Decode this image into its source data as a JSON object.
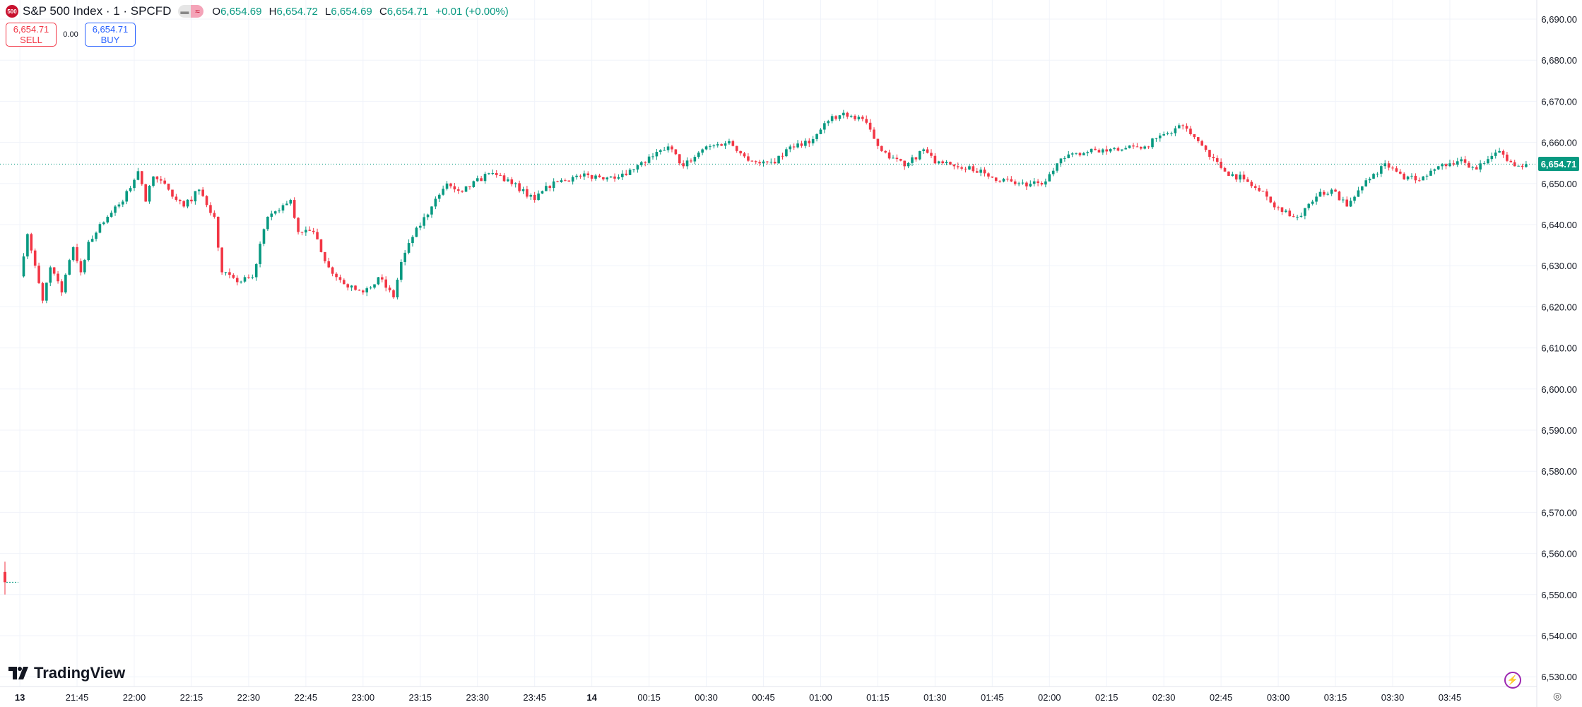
{
  "header": {
    "symbol_badge": "500",
    "title": "S&P 500 Index · 1 · SPCFD",
    "ohlc": {
      "o_label": "O",
      "o": "6,654.69",
      "h_label": "H",
      "h": "6,654.72",
      "l_label": "L",
      "l": "6,654.69",
      "c_label": "C",
      "c": "6,654.71",
      "change": "+0.01 (+0.00%)"
    }
  },
  "trade": {
    "sell_price": "6,654.71",
    "sell_label": "SELL",
    "spread": "0.00",
    "buy_price": "6,654.71",
    "buy_label": "BUY"
  },
  "current_price_label": "6,654.71",
  "logo_text": "TradingView",
  "colors": {
    "up": "#089981",
    "down": "#f23645",
    "grid": "#f0f3fa",
    "accent": "#089981"
  },
  "chart_data": {
    "type": "candlestick",
    "interval": "1 minute",
    "x_unit": "minutes since 21:30",
    "y_ticks": [
      "6,690.00",
      "6,680.00",
      "6,670.00",
      "6,660.00",
      "6,650.00",
      "6,640.00",
      "6,630.00",
      "6,620.00",
      "6,610.00",
      "6,600.00",
      "6,590.00",
      "6,580.00",
      "6,570.00",
      "6,560.00",
      "6,550.00",
      "6,540.00",
      "6,530.00"
    ],
    "y_tick_values": [
      6690,
      6680,
      6670,
      6660,
      6650,
      6640,
      6630,
      6620,
      6610,
      6600,
      6590,
      6580,
      6570,
      6560,
      6550,
      6540,
      6530
    ],
    "x_ticks": [
      {
        "label": "13",
        "m": 0
      },
      {
        "label": "21:45",
        "m": 15
      },
      {
        "label": "22:00",
        "m": 30
      },
      {
        "label": "22:15",
        "m": 45
      },
      {
        "label": "22:30",
        "m": 60
      },
      {
        "label": "22:45",
        "m": 75
      },
      {
        "label": "23:00",
        "m": 90
      },
      {
        "label": "23:15",
        "m": 105
      },
      {
        "label": "23:30",
        "m": 120
      },
      {
        "label": "23:45",
        "m": 135
      },
      {
        "label": "14",
        "m": 150
      },
      {
        "label": "00:15",
        "m": 165
      },
      {
        "label": "00:30",
        "m": 180
      },
      {
        "label": "00:45",
        "m": 195
      },
      {
        "label": "01:00",
        "m": 210
      },
      {
        "label": "01:15",
        "m": 225
      },
      {
        "label": "01:30",
        "m": 240
      },
      {
        "label": "01:45",
        "m": 255
      },
      {
        "label": "02:00",
        "m": 270
      },
      {
        "label": "02:15",
        "m": 285
      },
      {
        "label": "02:30",
        "m": 300
      },
      {
        "label": "02:45",
        "m": 315
      },
      {
        "label": "03:00",
        "m": 330
      },
      {
        "label": "03:15",
        "m": 345
      },
      {
        "label": "03:30",
        "m": 360
      },
      {
        "label": "03:45",
        "m": 375
      }
    ],
    "current_price": 6654.71,
    "previous_session_close": 6553,
    "close_waypoints": [
      [
        0,
        6628.4
      ],
      [
        2,
        6637.7
      ],
      [
        6,
        6621.5
      ],
      [
        8,
        6629.6
      ],
      [
        11,
        6623.5
      ],
      [
        14,
        6634.5
      ],
      [
        16,
        6628.4
      ],
      [
        18,
        6635.8
      ],
      [
        23,
        6641.9
      ],
      [
        27,
        6645.6
      ],
      [
        31,
        6653
      ],
      [
        33,
        6645.6
      ],
      [
        35,
        6651.7
      ],
      [
        39,
        6648.5
      ],
      [
        43,
        6644.4
      ],
      [
        47,
        6648.5
      ],
      [
        51,
        6641.9
      ],
      [
        53,
        6628.4
      ],
      [
        57,
        6626
      ],
      [
        61,
        6627.2
      ],
      [
        65,
        6641.9
      ],
      [
        71,
        6646
      ],
      [
        73,
        6638.2
      ],
      [
        77,
        6638.2
      ],
      [
        81,
        6629.6
      ],
      [
        86,
        6624.7
      ],
      [
        90,
        6623.5
      ],
      [
        94,
        6627.2
      ],
      [
        98,
        6622.3
      ],
      [
        100,
        6630.9
      ],
      [
        103,
        6637
      ],
      [
        108,
        6644.4
      ],
      [
        112,
        6650
      ],
      [
        116,
        6648
      ],
      [
        123,
        6652.5
      ],
      [
        128,
        6651
      ],
      [
        135,
        6646
      ],
      [
        140,
        6650.5
      ],
      [
        147,
        6651.7
      ],
      [
        155,
        6651.7
      ],
      [
        161,
        6653.4
      ],
      [
        166,
        6656.6
      ],
      [
        170,
        6659
      ],
      [
        174,
        6654.2
      ],
      [
        179,
        6658.3
      ],
      [
        186,
        6660.3
      ],
      [
        190,
        6656.6
      ],
      [
        194,
        6654.9
      ],
      [
        198,
        6654.9
      ],
      [
        202,
        6659
      ],
      [
        208,
        6660.8
      ],
      [
        212,
        6665.2
      ],
      [
        216,
        6667.2
      ],
      [
        221,
        6665.7
      ],
      [
        226,
        6657.9
      ],
      [
        232,
        6654.2
      ],
      [
        237,
        6658.3
      ],
      [
        240,
        6654.9
      ],
      [
        245,
        6654.2
      ],
      [
        249,
        6654.2
      ],
      [
        254,
        6651.7
      ],
      [
        260,
        6650.5
      ],
      [
        264,
        6649.3
      ],
      [
        269,
        6650.5
      ],
      [
        272,
        6654.9
      ],
      [
        277,
        6657.4
      ],
      [
        284,
        6658.3
      ],
      [
        289,
        6658.3
      ],
      [
        295,
        6659
      ],
      [
        300,
        6662
      ],
      [
        305,
        6664
      ],
      [
        309,
        6660.3
      ],
      [
        316,
        6652.9
      ],
      [
        321,
        6651
      ],
      [
        327,
        6646.8
      ],
      [
        331,
        6643.1
      ],
      [
        335,
        6641.9
      ],
      [
        340,
        6646.8
      ],
      [
        344,
        6648.5
      ],
      [
        348,
        6644.4
      ],
      [
        352,
        6649.3
      ],
      [
        358,
        6654.9
      ],
      [
        363,
        6651
      ],
      [
        368,
        6651.7
      ],
      [
        372,
        6654.2
      ],
      [
        378,
        6655.9
      ],
      [
        382,
        6653.4
      ],
      [
        388,
        6657.9
      ],
      [
        392,
        6654.2
      ],
      [
        395,
        6654.71
      ]
    ]
  }
}
